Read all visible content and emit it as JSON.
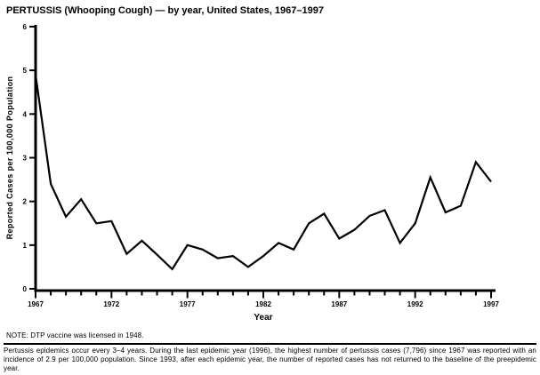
{
  "title": "PERTUSSIS (Whooping Cough) — by year, United States, 1967–1997",
  "chart_data": {
    "type": "line",
    "title": "PERTUSSIS (Whooping Cough) — by year, United States, 1967–1997",
    "xlabel": "Year",
    "ylabel": "Reported Cases per 100,000 Population",
    "x": [
      1967,
      1968,
      1969,
      1970,
      1971,
      1972,
      1973,
      1974,
      1975,
      1976,
      1977,
      1978,
      1979,
      1980,
      1981,
      1982,
      1983,
      1984,
      1985,
      1986,
      1987,
      1988,
      1989,
      1990,
      1991,
      1992,
      1993,
      1994,
      1995,
      1996,
      1997
    ],
    "values": [
      4.9,
      2.4,
      1.65,
      2.05,
      1.5,
      1.55,
      0.8,
      1.1,
      0.78,
      0.45,
      1.0,
      0.9,
      0.7,
      0.75,
      0.5,
      0.75,
      1.05,
      0.9,
      1.5,
      1.72,
      1.15,
      1.35,
      1.67,
      1.8,
      1.05,
      1.5,
      2.55,
      1.75,
      1.9,
      2.9,
      2.45
    ],
    "ylim": [
      0,
      6
    ],
    "yticks": [
      0,
      1,
      2,
      3,
      4,
      5,
      6
    ],
    "xticks_major": [
      1967,
      1972,
      1977,
      1982,
      1987,
      1992,
      1997
    ],
    "xticks_minor_interval": 1,
    "grid": false,
    "legend": "none",
    "line_color": "#000000",
    "axis_color": "#000000",
    "background_color": "#ffffff"
  },
  "note": "NOTE: DTP vaccine was licensed in 1948.",
  "footnote": "Pertussis epidemics occur every 3–4 years. During the last epidemic year (1996), the highest number of pertussis cases (7,796) since 1967 was reported with an incidence of 2.9 per 100,000 population. Since 1993, after each epidemic year, the number of reported cases has not returned to the baseline of the preepidemic year."
}
